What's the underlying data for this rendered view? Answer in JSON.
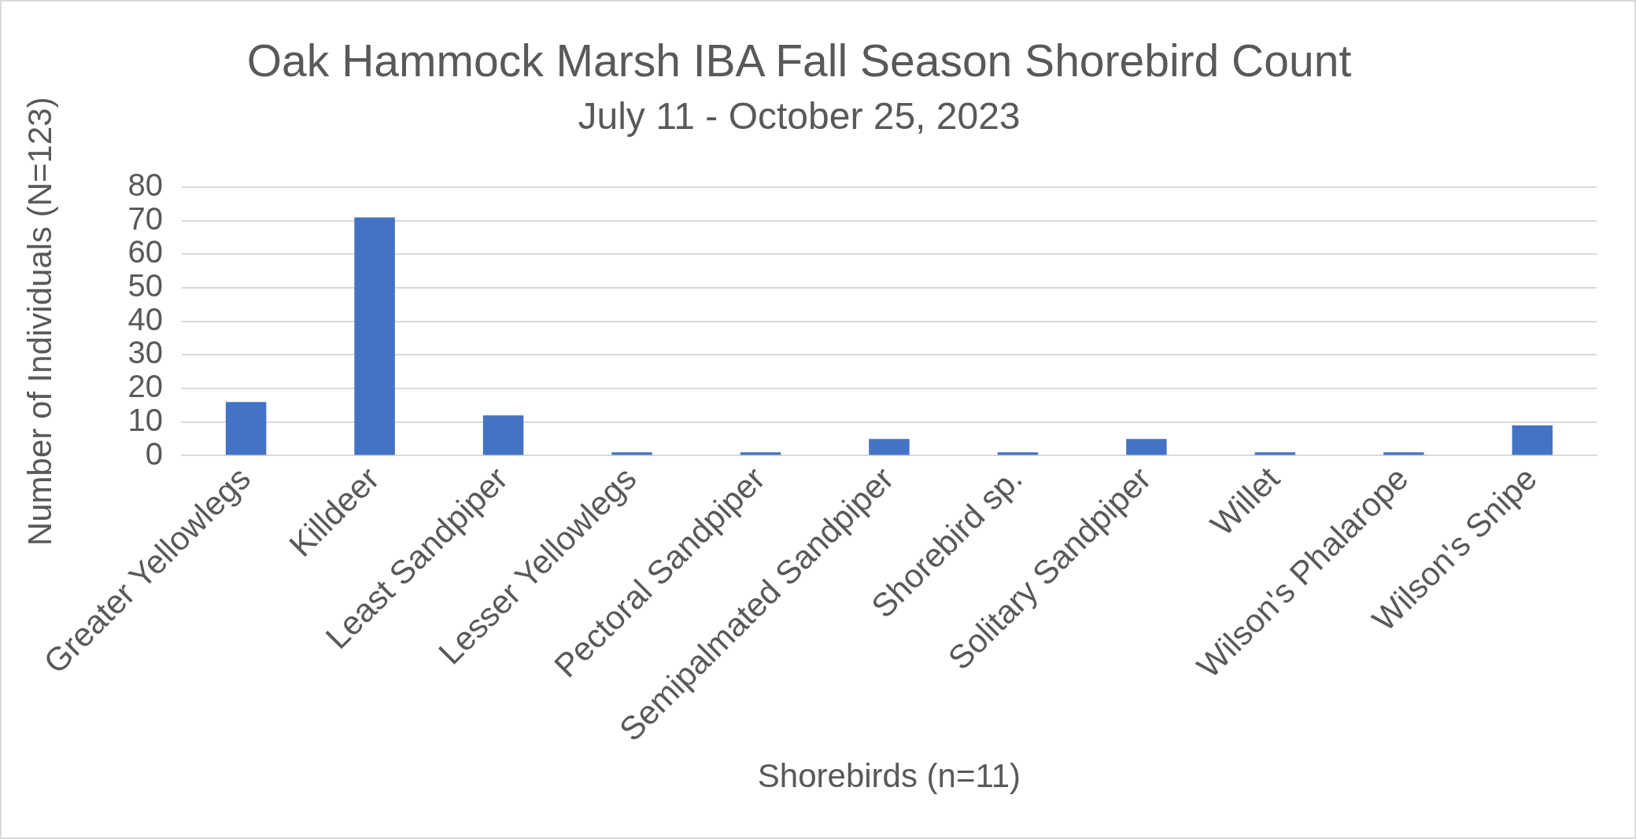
{
  "chart_data": {
    "type": "bar",
    "title": "Oak Hammock Marsh IBA Fall Season Shorebird Count",
    "subtitle": "July 11 - October 25, 2023",
    "xlabel": "Shorebirds (n=11)",
    "ylabel": "Number of Individuals (N=123)",
    "categories": [
      "Greater Yellowlegs",
      "Killdeer",
      "Least Sandpiper",
      "Lesser Yellowlegs",
      "Pectoral Sandpiper",
      "Semipalmated Sandpiper",
      "Shorebird sp.",
      "Solitary Sandpiper",
      "Willet",
      "Wilson's Phalarope",
      "Wilson's Snipe"
    ],
    "values": [
      16,
      71,
      12,
      1,
      1,
      5,
      1,
      5,
      1,
      1,
      9
    ],
    "color": "#4472c4",
    "ylim": [
      0,
      80
    ],
    "yticks": [
      0,
      10,
      20,
      30,
      40,
      50,
      60,
      70,
      80
    ],
    "grid": "y"
  }
}
